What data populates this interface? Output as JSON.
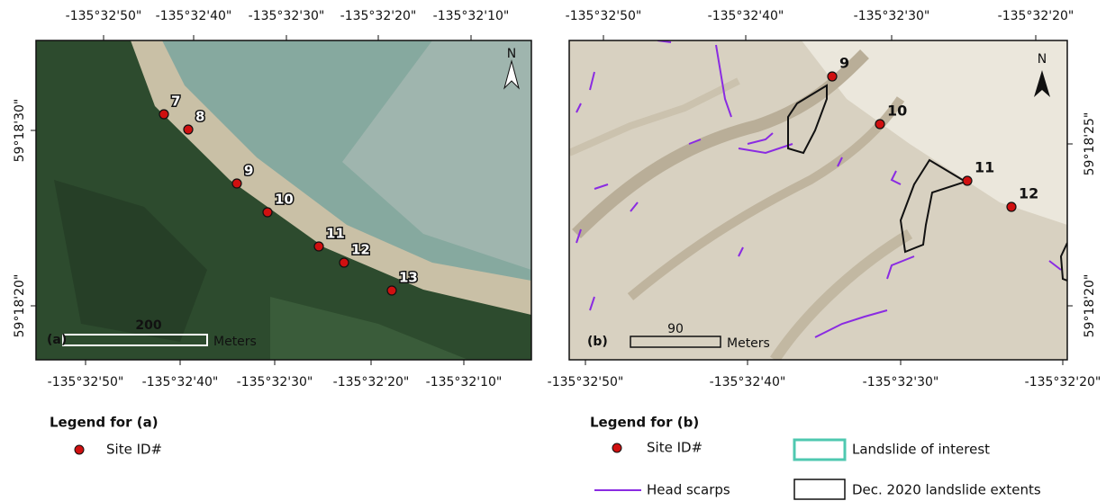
{
  "panels": [
    {
      "panel_label": "(a)",
      "north": "N",
      "top_ticks": [
        "-135°32'50\"",
        "-135°32'40\"",
        "-135°32'30\"",
        "-135°32'20\"",
        "-135°32'10\""
      ],
      "bottom_ticks": [
        "-135°32'50\"",
        "-135°32'40\"",
        "-135°32'30\"",
        "-135°32'20\"",
        "-135°32'10\""
      ],
      "side_ticks": [
        "59°18'30\"",
        "59°18'20\""
      ],
      "sites": [
        "7",
        "8",
        "9",
        "10",
        "11",
        "12",
        "13"
      ],
      "scale_bar": {
        "value": "200",
        "unit": "Meters"
      }
    },
    {
      "panel_label": "(b)",
      "north": "N",
      "top_ticks": [
        "-135°32'50\"",
        "-135°32'40\"",
        "-135°32'30\"",
        "-135°32'20\""
      ],
      "bottom_ticks": [
        "-135°32'50\"",
        "-135°32'40\"",
        "-135°32'30\"",
        "-135°32'20\""
      ],
      "side_ticks": [
        "59°18'25\"",
        "59°18'20\""
      ],
      "sites": [
        "9",
        "10",
        "11",
        "12"
      ],
      "scale_bar": {
        "value": "90",
        "unit": "Meters"
      }
    }
  ],
  "legend_a": {
    "title": "Legend for (a)",
    "site": "Site ID#"
  },
  "legend_b": {
    "title": "Legend for (b)",
    "site": "Site ID#",
    "scarps": "Head scarps",
    "interest": "Landslide of interest",
    "extents": "Dec. 2020 landslide extents"
  }
}
